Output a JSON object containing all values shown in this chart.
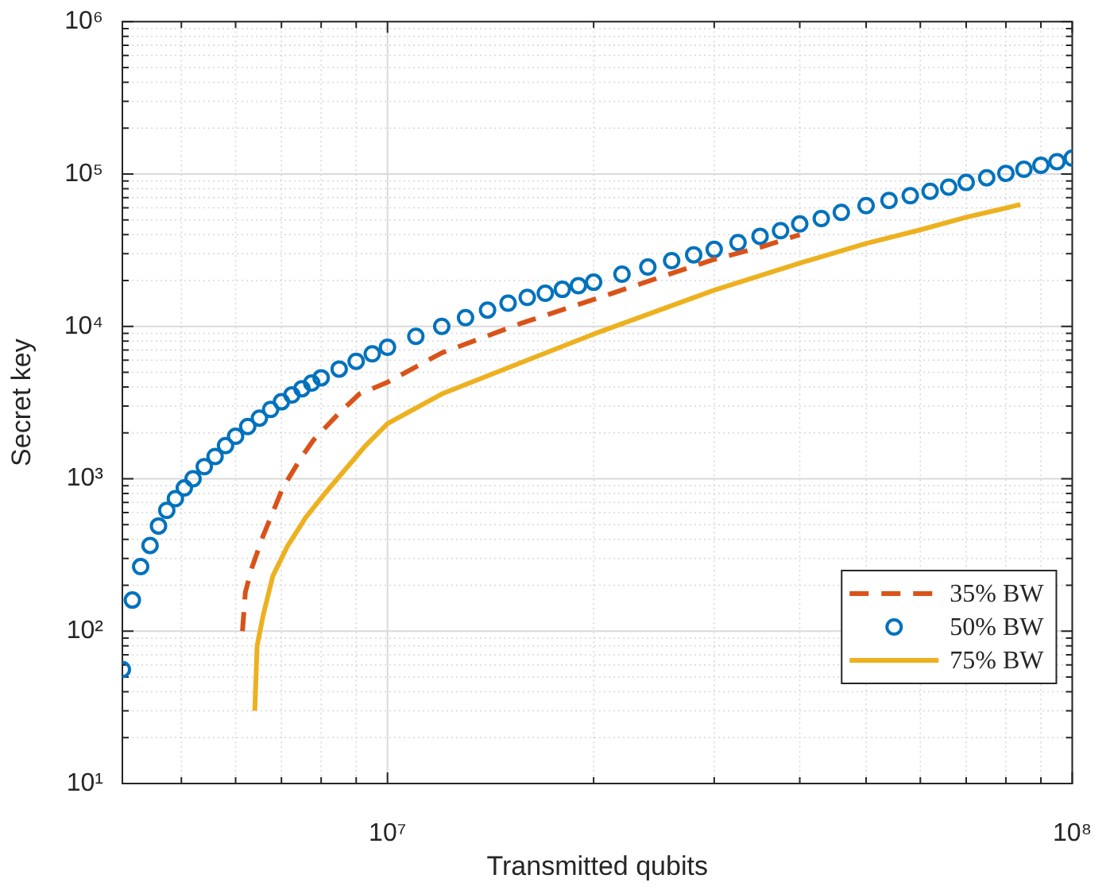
{
  "chart_data": {
    "type": "line",
    "xlabel": "Transmitted qubits",
    "ylabel": "Secret key",
    "log": "xy",
    "grid": true,
    "legend": "bottom right",
    "xlim": [
      4100000,
      100000000
    ],
    "ylim": [
      10,
      1000000
    ],
    "xticks": [
      {
        "value": 5000000,
        "label": null
      },
      {
        "value": 6000000,
        "label": null
      },
      {
        "value": 7000000,
        "label": null
      },
      {
        "value": 8000000,
        "label": null
      },
      {
        "value": 9000000,
        "label": null
      },
      {
        "value": 10000000,
        "label": "10⁷"
      },
      {
        "value": 20000000,
        "label": null
      },
      {
        "value": 30000000,
        "label": null
      },
      {
        "value": 40000000,
        "label": null
      },
      {
        "value": 50000000,
        "label": null
      },
      {
        "value": 60000000,
        "label": null
      },
      {
        "value": 70000000,
        "label": null
      },
      {
        "value": 80000000,
        "label": null
      },
      {
        "value": 90000000,
        "label": null
      },
      {
        "value": 100000000,
        "label": "10⁸"
      }
    ],
    "yticks": [
      {
        "value": 10,
        "label": "10¹"
      },
      {
        "value": 20,
        "label": null
      },
      {
        "value": 30,
        "label": null
      },
      {
        "value": 40,
        "label": null
      },
      {
        "value": 50,
        "label": null
      },
      {
        "value": 60,
        "label": null
      },
      {
        "value": 70,
        "label": null
      },
      {
        "value": 80,
        "label": null
      },
      {
        "value": 90,
        "label": null
      },
      {
        "value": 100,
        "label": "10²"
      },
      {
        "value": 200,
        "label": null
      },
      {
        "value": 300,
        "label": null
      },
      {
        "value": 400,
        "label": null
      },
      {
        "value": 500,
        "label": null
      },
      {
        "value": 600,
        "label": null
      },
      {
        "value": 700,
        "label": null
      },
      {
        "value": 800,
        "label": null
      },
      {
        "value": 900,
        "label": null
      },
      {
        "value": 1000,
        "label": "10³"
      },
      {
        "value": 2000,
        "label": null
      },
      {
        "value": 3000,
        "label": null
      },
      {
        "value": 4000,
        "label": null
      },
      {
        "value": 5000,
        "label": null
      },
      {
        "value": 6000,
        "label": null
      },
      {
        "value": 7000,
        "label": null
      },
      {
        "value": 8000,
        "label": null
      },
      {
        "value": 9000,
        "label": null
      },
      {
        "value": 10000,
        "label": "10⁴"
      },
      {
        "value": 20000,
        "label": null
      },
      {
        "value": 30000,
        "label": null
      },
      {
        "value": 40000,
        "label": null
      },
      {
        "value": 50000,
        "label": null
      },
      {
        "value": 60000,
        "label": null
      },
      {
        "value": 70000,
        "label": null
      },
      {
        "value": 80000,
        "label": null
      },
      {
        "value": 90000,
        "label": null
      },
      {
        "value": 100000,
        "label": "10⁵"
      },
      {
        "value": 200000,
        "label": null
      },
      {
        "value": 300000,
        "label": null
      },
      {
        "value": 400000,
        "label": null
      },
      {
        "value": 500000,
        "label": null
      },
      {
        "value": 600000,
        "label": null
      },
      {
        "value": 700000,
        "label": null
      },
      {
        "value": 800000,
        "label": null
      },
      {
        "value": 900000,
        "label": null
      },
      {
        "value": 1000000,
        "label": "10⁶"
      }
    ],
    "series": [
      {
        "name": "35% BW",
        "type": "line",
        "line_style": "dashed",
        "marker": "none",
        "color": "#d95319",
        "x": [
          6140000,
          6200000,
          6340000,
          6580000,
          7030000,
          7500000,
          7800000,
          8500000,
          9100000,
          10000000,
          12000000,
          15700000,
          20000000,
          25000000,
          30000000,
          35000000,
          40000000
        ],
        "values": [
          100,
          180,
          262,
          420,
          870,
          1400,
          1800,
          2700,
          3600,
          4300,
          6700,
          10500,
          15000,
          21000,
          27500,
          33000,
          40000
        ]
      },
      {
        "name": "50% BW",
        "type": "scatter",
        "marker": "circle",
        "color": "#0072bd",
        "x": [
          4100000,
          4240000,
          4360000,
          4500000,
          4630000,
          4760000,
          4900000,
          5050000,
          5200000,
          5400000,
          5600000,
          5800000,
          6000000,
          6250000,
          6500000,
          6750000,
          7000000,
          7250000,
          7500000,
          7750000,
          8000000,
          8500000,
          9000000,
          9500000,
          10000000,
          11000000,
          12000000,
          13000000,
          14000000,
          15000000,
          16000000,
          17000000,
          18000000,
          19000000,
          20000000,
          22000000,
          24000000,
          26000000,
          28000000,
          30000000,
          32500000,
          35000000,
          37500000,
          40000000,
          43000000,
          46000000,
          50000000,
          54000000,
          58000000,
          62000000,
          66000000,
          70000000,
          75000000,
          80000000,
          85000000,
          90000000,
          95000000,
          100000000
        ],
        "values": [
          56,
          160,
          265,
          365,
          490,
          620,
          740,
          870,
          1000,
          1200,
          1400,
          1650,
          1900,
          2200,
          2500,
          2850,
          3200,
          3550,
          3900,
          4250,
          4600,
          5250,
          5900,
          6600,
          7300,
          8600,
          10000,
          11400,
          12800,
          14200,
          15500,
          16500,
          17500,
          18500,
          19500,
          22000,
          24500,
          27000,
          29500,
          32000,
          35500,
          39000,
          42500,
          47000,
          51000,
          56000,
          62000,
          67000,
          72000,
          77000,
          82000,
          88000,
          94500,
          101000,
          107500,
          114000,
          120500,
          127000
        ]
      },
      {
        "name": "75% BW",
        "type": "line",
        "line_style": "solid",
        "marker": "none",
        "color": "#edb120",
        "x": [
          6400000,
          6450000,
          6580000,
          6800000,
          7140000,
          7600000,
          8100000,
          9300000,
          10000000,
          12000000,
          16300000,
          20000000,
          30000000,
          40000000,
          50000000,
          60000000,
          70000000,
          84000000
        ],
        "values": [
          30,
          80,
          126,
          230,
          360,
          560,
          800,
          1660,
          2300,
          3600,
          6200,
          8900,
          17300,
          26000,
          35000,
          43000,
          52000,
          63000
        ]
      }
    ]
  }
}
